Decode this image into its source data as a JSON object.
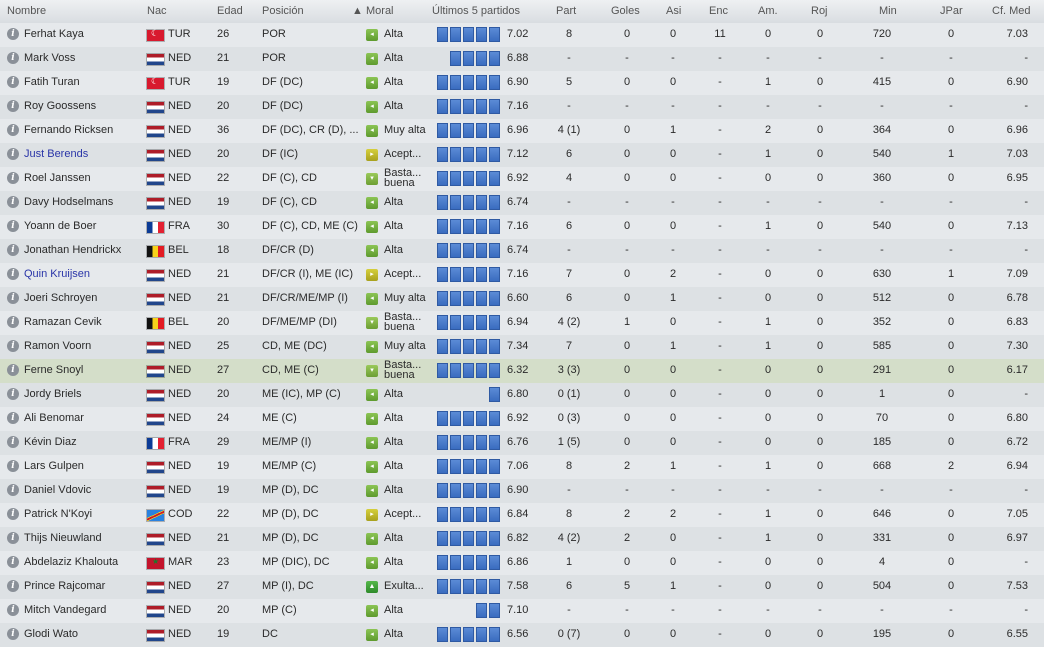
{
  "headers": {
    "name": "Nombre",
    "nat": "Nac",
    "age": "Edad",
    "position": "Posición",
    "sort_arrow": "▲",
    "morale": "Moral",
    "last5": "Últimos 5 partidos",
    "part": "Part",
    "goles": "Goles",
    "asi": "Asi",
    "enc": "Enc",
    "am": "Am.",
    "roj": "Roj",
    "min": "Min",
    "jpar": "JPar",
    "cf_med": "Cf. Med"
  },
  "colors": {
    "link_blue": "#2a35a8",
    "bar_blue": "#3a6cbf",
    "morale_green": "#6aa83a"
  },
  "rows": [
    {
      "name": "Ferhat Kaya",
      "flag": "tur",
      "nat": "TUR",
      "age": "26",
      "pos": "POR",
      "morale_icon": "alta",
      "morale": "Alta",
      "bars": 5,
      "avg": "7.02",
      "part": "8",
      "goles": "0",
      "asi": "0",
      "enc": "11",
      "am": "0",
      "roj": "0",
      "min": "720",
      "jpar": "0",
      "cf": "7.03"
    },
    {
      "name": "Mark Voss",
      "flag": "ned",
      "nat": "NED",
      "age": "21",
      "pos": "POR",
      "morale_icon": "alta",
      "morale": "Alta",
      "bars": 4,
      "avg": "6.88",
      "part": "-",
      "goles": "-",
      "asi": "-",
      "enc": "-",
      "am": "-",
      "roj": "-",
      "min": "-",
      "jpar": "-",
      "cf": "-"
    },
    {
      "name": "Fatih Turan",
      "flag": "tur",
      "nat": "TUR",
      "age": "19",
      "pos": "DF (DC)",
      "morale_icon": "alta",
      "morale": "Alta",
      "bars": 5,
      "avg": "6.90",
      "part": "5",
      "goles": "0",
      "asi": "0",
      "enc": "-",
      "am": "1",
      "roj": "0",
      "min": "415",
      "jpar": "0",
      "cf": "6.90"
    },
    {
      "name": "Roy Goossens",
      "flag": "ned",
      "nat": "NED",
      "age": "20",
      "pos": "DF (DC)",
      "morale_icon": "alta",
      "morale": "Alta",
      "bars": 5,
      "avg": "7.16",
      "part": "-",
      "goles": "-",
      "asi": "-",
      "enc": "-",
      "am": "-",
      "roj": "-",
      "min": "-",
      "jpar": "-",
      "cf": "-"
    },
    {
      "name": "Fernando Ricksen",
      "flag": "ned",
      "nat": "NED",
      "age": "36",
      "pos": "DF (DC), CR (D), ...",
      "morale_icon": "alta",
      "morale": "Muy alta",
      "bars": 5,
      "avg": "6.96",
      "part": "4 (1)",
      "goles": "0",
      "asi": "1",
      "enc": "-",
      "am": "2",
      "roj": "0",
      "min": "364",
      "jpar": "0",
      "cf": "6.96"
    },
    {
      "name": "Just Berends",
      "blue": true,
      "flag": "ned",
      "nat": "NED",
      "age": "20",
      "pos": "DF (IC)",
      "morale_icon": "acept",
      "morale": "Acept...",
      "bars": 5,
      "avg": "7.12",
      "part": "6",
      "goles": "0",
      "asi": "0",
      "enc": "-",
      "am": "1",
      "roj": "0",
      "min": "540",
      "jpar": "1",
      "cf": "7.03"
    },
    {
      "name": "Roel Janssen",
      "flag": "ned",
      "nat": "NED",
      "age": "22",
      "pos": "DF (C), CD",
      "morale_icon": "basta",
      "morale": "Basta... buena",
      "bars": 5,
      "avg": "6.92",
      "part": "4",
      "goles": "0",
      "asi": "0",
      "enc": "-",
      "am": "0",
      "roj": "0",
      "min": "360",
      "jpar": "0",
      "cf": "6.95"
    },
    {
      "name": "Davy Hodselmans",
      "flag": "ned",
      "nat": "NED",
      "age": "19",
      "pos": "DF (C), CD",
      "morale_icon": "alta",
      "morale": "Alta",
      "bars": 5,
      "avg": "6.74",
      "part": "-",
      "goles": "-",
      "asi": "-",
      "enc": "-",
      "am": "-",
      "roj": "-",
      "min": "-",
      "jpar": "-",
      "cf": "-"
    },
    {
      "name": "Yoann de Boer",
      "flag": "fra",
      "nat": "FRA",
      "age": "30",
      "pos": "DF (C), CD, ME (C)",
      "morale_icon": "alta",
      "morale": "Alta",
      "bars": 5,
      "avg": "7.16",
      "part": "6",
      "goles": "0",
      "asi": "0",
      "enc": "-",
      "am": "1",
      "roj": "0",
      "min": "540",
      "jpar": "0",
      "cf": "7.13"
    },
    {
      "name": "Jonathan Hendrickx",
      "flag": "bel",
      "nat": "BEL",
      "age": "18",
      "pos": "DF/CR (D)",
      "morale_icon": "alta",
      "morale": "Alta",
      "bars": 5,
      "avg": "6.74",
      "part": "-",
      "goles": "-",
      "asi": "-",
      "enc": "-",
      "am": "-",
      "roj": "-",
      "min": "-",
      "jpar": "-",
      "cf": "-"
    },
    {
      "name": "Quin Kruijsen",
      "blue": true,
      "flag": "ned",
      "nat": "NED",
      "age": "21",
      "pos": "DF/CR (I), ME (IC)",
      "morale_icon": "acept",
      "morale": "Acept...",
      "bars": 5,
      "avg": "7.16",
      "part": "7",
      "goles": "0",
      "asi": "2",
      "enc": "-",
      "am": "0",
      "roj": "0",
      "min": "630",
      "jpar": "1",
      "cf": "7.09"
    },
    {
      "name": "Joeri Schroyen",
      "flag": "ned",
      "nat": "NED",
      "age": "21",
      "pos": "DF/CR/ME/MP (I)",
      "morale_icon": "alta",
      "morale": "Muy alta",
      "bars": 5,
      "avg": "6.60",
      "part": "6",
      "goles": "0",
      "asi": "1",
      "enc": "-",
      "am": "0",
      "roj": "0",
      "min": "512",
      "jpar": "0",
      "cf": "6.78"
    },
    {
      "name": "Ramazan Cevik",
      "flag": "bel",
      "nat": "BEL",
      "age": "20",
      "pos": "DF/ME/MP (DI)",
      "morale_icon": "basta",
      "morale": "Basta... buena",
      "bars": 5,
      "avg": "6.94",
      "part": "4 (2)",
      "goles": "1",
      "asi": "0",
      "enc": "-",
      "am": "1",
      "roj": "0",
      "min": "352",
      "jpar": "0",
      "cf": "6.83"
    },
    {
      "name": "Ramon Voorn",
      "flag": "ned",
      "nat": "NED",
      "age": "25",
      "pos": "CD, ME (DC)",
      "morale_icon": "alta",
      "morale": "Muy alta",
      "bars": 5,
      "avg": "7.34",
      "part": "7",
      "goles": "0",
      "asi": "1",
      "enc": "-",
      "am": "1",
      "roj": "0",
      "min": "585",
      "jpar": "0",
      "cf": "7.30"
    },
    {
      "name": "Ferne Snoyl",
      "flag": "ned",
      "nat": "NED",
      "age": "27",
      "pos": "CD, ME (C)",
      "morale_icon": "basta",
      "morale": "Basta... buena",
      "bars": 5,
      "avg": "6.32",
      "part": "3 (3)",
      "goles": "0",
      "asi": "0",
      "enc": "-",
      "am": "0",
      "roj": "0",
      "min": "291",
      "jpar": "0",
      "cf": "6.17",
      "highlight": true
    },
    {
      "name": "Jordy Briels",
      "flag": "ned",
      "nat": "NED",
      "age": "20",
      "pos": "ME (IC), MP (C)",
      "morale_icon": "alta",
      "morale": "Alta",
      "bars": 1,
      "avg": "6.80",
      "part": "0 (1)",
      "goles": "0",
      "asi": "0",
      "enc": "-",
      "am": "0",
      "roj": "0",
      "min": "1",
      "jpar": "0",
      "cf": "-"
    },
    {
      "name": "Ali Benomar",
      "flag": "ned",
      "nat": "NED",
      "age": "24",
      "pos": "ME (C)",
      "morale_icon": "alta",
      "morale": "Alta",
      "bars": 5,
      "avg": "6.92",
      "part": "0 (3)",
      "goles": "0",
      "asi": "0",
      "enc": "-",
      "am": "0",
      "roj": "0",
      "min": "70",
      "jpar": "0",
      "cf": "6.80"
    },
    {
      "name": "Kévin Diaz",
      "flag": "fra",
      "nat": "FRA",
      "age": "29",
      "pos": "ME/MP (I)",
      "morale_icon": "alta",
      "morale": "Alta",
      "bars": 5,
      "avg": "6.76",
      "part": "1 (5)",
      "goles": "0",
      "asi": "0",
      "enc": "-",
      "am": "0",
      "roj": "0",
      "min": "185",
      "jpar": "0",
      "cf": "6.72"
    },
    {
      "name": "Lars Gulpen",
      "flag": "ned",
      "nat": "NED",
      "age": "19",
      "pos": "ME/MP (C)",
      "morale_icon": "alta",
      "morale": "Alta",
      "bars": 5,
      "avg": "7.06",
      "part": "8",
      "goles": "2",
      "asi": "1",
      "enc": "-",
      "am": "1",
      "roj": "0",
      "min": "668",
      "jpar": "2",
      "cf": "6.94"
    },
    {
      "name": "Daniel Vdovic",
      "flag": "ned",
      "nat": "NED",
      "age": "19",
      "pos": "MP (D), DC",
      "morale_icon": "alta",
      "morale": "Alta",
      "bars": 5,
      "avg": "6.90",
      "part": "-",
      "goles": "-",
      "asi": "-",
      "enc": "-",
      "am": "-",
      "roj": "-",
      "min": "-",
      "jpar": "-",
      "cf": "-"
    },
    {
      "name": "Patrick N'Koyi",
      "flag": "cod",
      "nat": "COD",
      "age": "22",
      "pos": "MP (D), DC",
      "morale_icon": "acept",
      "morale": "Acept...",
      "bars": 5,
      "avg": "6.84",
      "part": "8",
      "goles": "2",
      "asi": "2",
      "enc": "-",
      "am": "1",
      "roj": "0",
      "min": "646",
      "jpar": "0",
      "cf": "7.05"
    },
    {
      "name": "Thijs Nieuwland",
      "flag": "ned",
      "nat": "NED",
      "age": "21",
      "pos": "MP (D), DC",
      "morale_icon": "alta",
      "morale": "Alta",
      "bars": 5,
      "avg": "6.82",
      "part": "4 (2)",
      "goles": "2",
      "asi": "0",
      "enc": "-",
      "am": "1",
      "roj": "0",
      "min": "331",
      "jpar": "0",
      "cf": "6.97"
    },
    {
      "name": "Abdelaziz Khalouta",
      "flag": "mar",
      "nat": "MAR",
      "age": "23",
      "pos": "MP (DIC), DC",
      "morale_icon": "alta",
      "morale": "Alta",
      "bars": 5,
      "avg": "6.86",
      "part": "1",
      "goles": "0",
      "asi": "0",
      "enc": "-",
      "am": "0",
      "roj": "0",
      "min": "4",
      "jpar": "0",
      "cf": "-"
    },
    {
      "name": "Prince Rajcomar",
      "flag": "ned",
      "nat": "NED",
      "age": "27",
      "pos": "MP (I), DC",
      "morale_icon": "exulta",
      "morale": "Exulta...",
      "bars": 5,
      "avg": "7.58",
      "part": "6",
      "goles": "5",
      "asi": "1",
      "enc": "-",
      "am": "0",
      "roj": "0",
      "min": "504",
      "jpar": "0",
      "cf": "7.53"
    },
    {
      "name": "Mitch Vandegard",
      "flag": "ned",
      "nat": "NED",
      "age": "20",
      "pos": "MP (C)",
      "morale_icon": "alta",
      "morale": "Alta",
      "bars": 2,
      "avg": "7.10",
      "part": "-",
      "goles": "-",
      "asi": "-",
      "enc": "-",
      "am": "-",
      "roj": "-",
      "min": "-",
      "jpar": "-",
      "cf": "-"
    },
    {
      "name": "Glodi Wato",
      "flag": "ned",
      "nat": "NED",
      "age": "19",
      "pos": "DC",
      "morale_icon": "alta",
      "morale": "Alta",
      "bars": 5,
      "avg": "6.56",
      "part": "0 (7)",
      "goles": "0",
      "asi": "0",
      "enc": "-",
      "am": "0",
      "roj": "0",
      "min": "195",
      "jpar": "0",
      "cf": "6.55"
    }
  ]
}
